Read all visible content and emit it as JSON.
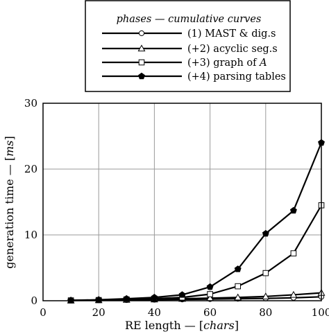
{
  "chart_data": {
    "type": "line",
    "legend_title": "phases — cumulative curves",
    "legend_placement": "top-center",
    "xlabel_prefix": "RE length — [",
    "xlabel_unit": "chars",
    "xlabel_suffix": "]",
    "ylabel_prefix": "generation time — [",
    "ylabel_unit": "ms",
    "ylabel_suffix": "]",
    "xlim": [
      0,
      100
    ],
    "ylim": [
      0,
      30
    ],
    "xticks": [
      0,
      20,
      40,
      60,
      80,
      100
    ],
    "yticks": [
      0,
      10,
      20,
      30
    ],
    "grid": true,
    "x": [
      10,
      20,
      30,
      40,
      50,
      60,
      70,
      80,
      90,
      100
    ],
    "series": [
      {
        "name": "(1) MAST & dig.s",
        "marker": "circle-open",
        "values": [
          0.05,
          0.08,
          0.1,
          0.15,
          0.2,
          0.25,
          0.3,
          0.35,
          0.45,
          0.6
        ]
      },
      {
        "name": "(+2) acyclic seg.s",
        "marker": "triangle-open",
        "values": [
          0.05,
          0.1,
          0.15,
          0.2,
          0.3,
          0.4,
          0.5,
          0.65,
          0.9,
          1.2
        ]
      },
      {
        "name_prefix": "(+3) graph of ",
        "name_italic": "A",
        "marker": "square-open",
        "values": [
          0.05,
          0.1,
          0.2,
          0.3,
          0.5,
          1.0,
          2.2,
          4.2,
          7.2,
          14.5
        ]
      },
      {
        "name": "(+4) parsing tables",
        "marker": "pentagon-filled",
        "values": [
          0.05,
          0.15,
          0.3,
          0.5,
          0.9,
          2.1,
          4.8,
          10.2,
          13.7,
          24.0
        ]
      }
    ]
  }
}
